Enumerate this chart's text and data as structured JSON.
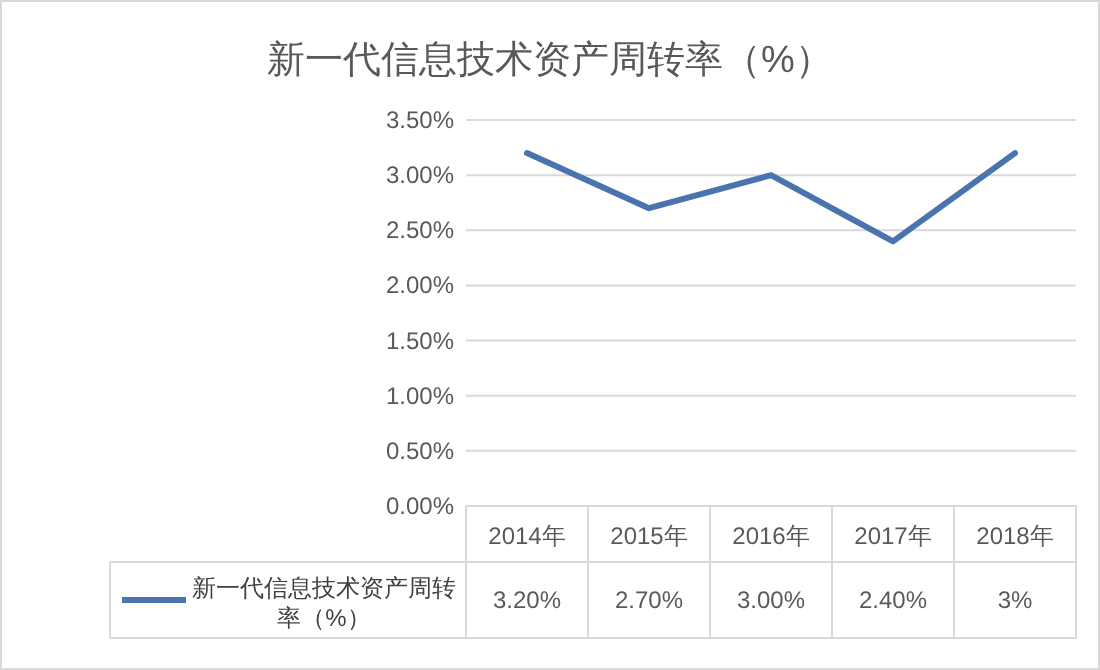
{
  "chart_data": {
    "type": "line",
    "title": "新一代信息技术资产周转率（%）",
    "categories": [
      "2014年",
      "2015年",
      "2016年",
      "2017年",
      "2018年"
    ],
    "series": [
      {
        "name": "新一代信息技术资产周转率（%）",
        "color": "#4a74ae",
        "values": [
          3.2,
          2.7,
          3.0,
          2.4,
          3.2
        ],
        "value_labels": [
          "3.20%",
          "2.70%",
          "3.00%",
          "2.40%",
          "3%"
        ]
      }
    ],
    "ylim": [
      0,
      3.5
    ],
    "yticks": [
      {
        "value": 0,
        "label": "0.00%"
      },
      {
        "value": 0.5,
        "label": "0.50%"
      },
      {
        "value": 1,
        "label": "1.00%"
      },
      {
        "value": 1.5,
        "label": "1.50%"
      },
      {
        "value": 2,
        "label": "2.00%"
      },
      {
        "value": 2.5,
        "label": "2.50%"
      },
      {
        "value": 3,
        "label": "3.00%"
      },
      {
        "value": 3.5,
        "label": "3.50%"
      }
    ],
    "grid": "y",
    "legend": "bottom"
  }
}
